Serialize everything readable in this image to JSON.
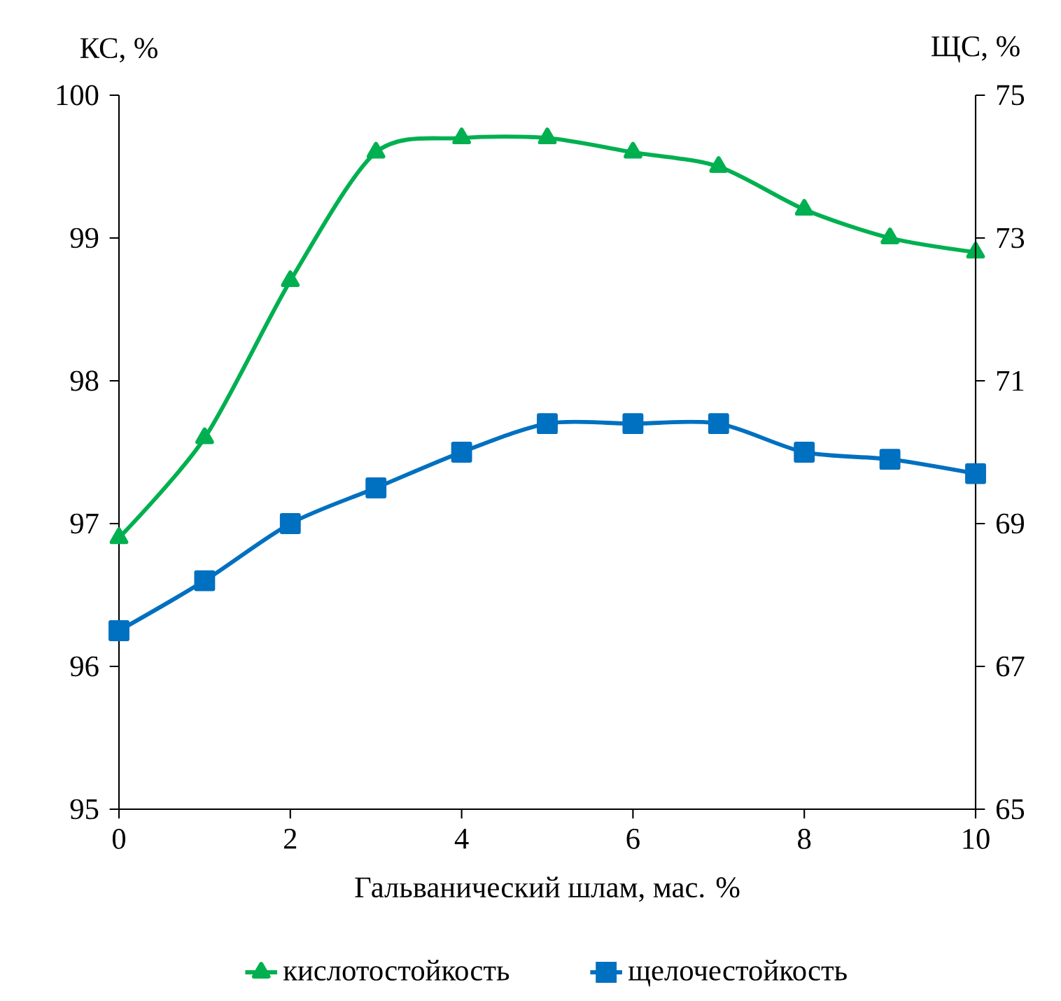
{
  "chart_data": {
    "type": "line",
    "xlabel": "Гальванический шлам, мас. %",
    "ylabel": "КС, %",
    "y2label": "ЩС, %",
    "x": [
      0,
      1,
      2,
      3,
      4,
      5,
      6,
      7,
      8,
      9,
      10
    ],
    "series": [
      {
        "name": "кислотостойкость",
        "color": "#00b050",
        "marker": "triangle",
        "values": [
          96.9,
          97.6,
          98.7,
          99.6,
          99.7,
          99.7,
          99.6,
          99.5,
          99.2,
          99.0,
          98.9
        ]
      },
      {
        "name": "щелочестойкость",
        "color": "#0070c0",
        "marker": "square",
        "axis": "y2",
        "values": [
          67.5,
          68.2,
          69.0,
          69.5,
          70.0,
          70.4,
          70.4,
          70.4,
          70.0,
          69.9,
          69.7
        ]
      }
    ],
    "xlim": [
      0,
      10
    ],
    "xticks": [
      0,
      2,
      4,
      6,
      8,
      10
    ],
    "ylim": [
      95,
      100
    ],
    "yticks": [
      95,
      96,
      97,
      98,
      99,
      100
    ],
    "y2lim": [
      65,
      75
    ],
    "y2ticks": [
      65,
      67,
      69,
      71,
      73,
      75
    ],
    "legend": "bottom"
  }
}
